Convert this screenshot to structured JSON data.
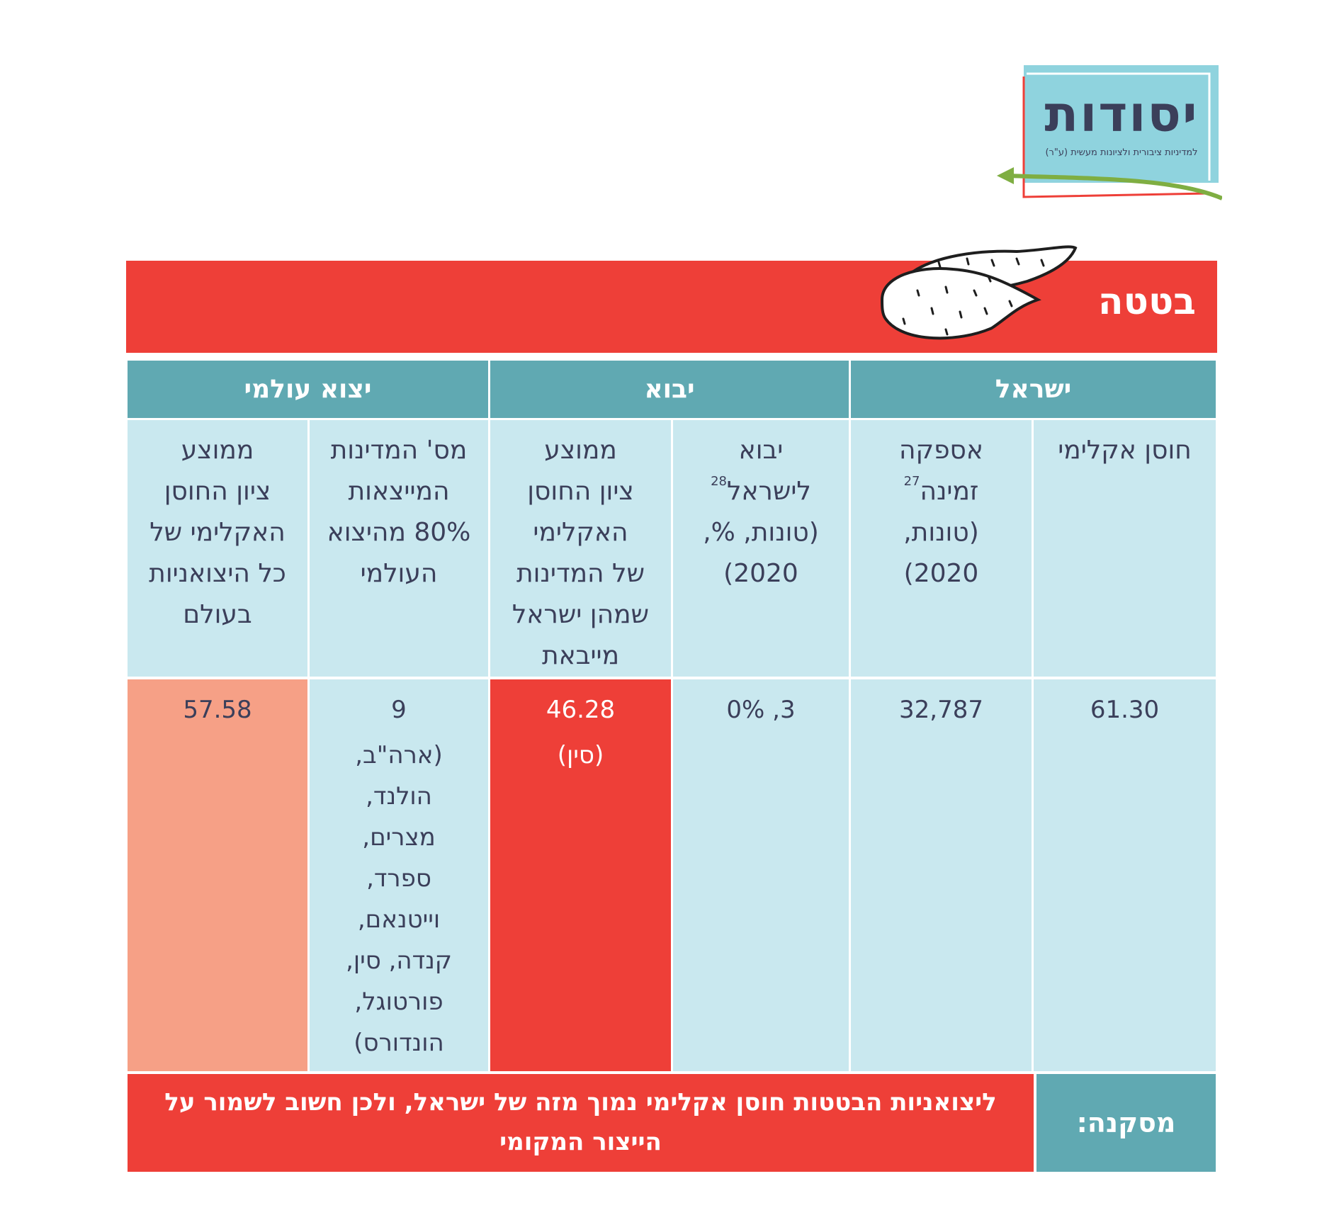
{
  "logo": {
    "title": "יסודות",
    "subtitle": "למדיניות ציבורית ולציונות מעשית (ע\"ר)"
  },
  "title": "בטטה",
  "groups": {
    "israel": "ישראל",
    "import": "יבוא",
    "global": "יצוא עולמי"
  },
  "columns": {
    "resilience": {
      "lines": [
        "חוסן אקלימי"
      ]
    },
    "supply": {
      "lines": [
        "אספקה",
        "זמינה",
        "(טונות,",
        "2020)"
      ],
      "note": "27"
    },
    "imports": {
      "lines": [
        "יבוא",
        "לישראל",
        "(טונות, %,",
        "2020)"
      ],
      "note": "28"
    },
    "import_avg": {
      "lines": [
        "ממוצע",
        "ציון החוסן",
        "האקלימי",
        "של המדינות",
        "שמהן ישראל",
        "מייבאת"
      ]
    },
    "exporters": {
      "lines": [
        "מס' המדינות",
        "המייצאות",
        "80% מהיצוא",
        "העולמי"
      ]
    },
    "global_avg": {
      "lines": [
        "ממוצע",
        "ציון החוסן",
        "האקלימי של",
        "כל היצואניות",
        "בעולם"
      ]
    }
  },
  "values": {
    "resilience": [
      "61.30"
    ],
    "supply": [
      "32,787"
    ],
    "imports": [
      "3, 0%"
    ],
    "import_avg": [
      "46.28",
      "(סין)"
    ],
    "exporters": [
      "9",
      "(ארה\"ב,",
      "הולנד,",
      "מצרים,",
      "ספרד,",
      "וייטנאם,",
      "קנדה, סין,",
      "פורטוגל,",
      "הונדורס)"
    ],
    "global_avg": [
      "57.58"
    ]
  },
  "conclusion": {
    "label": "מסקנה:",
    "lines": [
      "ליצואניות הבטטות חוסן אקלימי נמוך מזה של ישראל, ולכן חשוב לשמור",
      "על הייצור המקומי"
    ]
  },
  "colors": {
    "red": "#ee3f38",
    "teal": "#60a9b2",
    "light": "#c9e8ef",
    "salmon": "#f6a086",
    "text": "#3b3f5a"
  }
}
